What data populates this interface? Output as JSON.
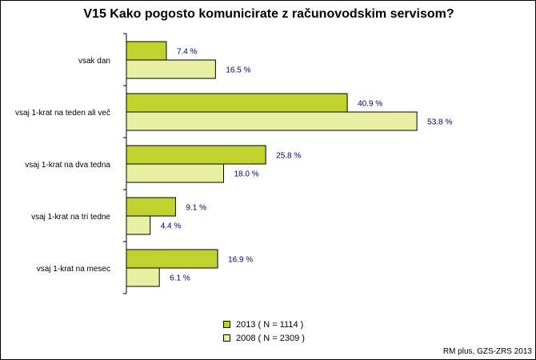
{
  "chart_data": {
    "type": "bar",
    "orientation": "horizontal",
    "title": "V15 Kako pogosto komunicirate z računovodskim servisom?",
    "categories": [
      "vsak dan",
      "vsaj 1-krat na teden ali več",
      "vsaj 1-krat na dva tedna",
      "vsaj 1-krat na tri tedne",
      "vsaj 1-krat na mesec"
    ],
    "series": [
      {
        "name": "2013 ( N = 1114 )",
        "color": "#bfd22e",
        "values": [
          7.4,
          40.9,
          25.8,
          9.1,
          16.9
        ]
      },
      {
        "name": "2008 ( N = 2309 )",
        "color": "#e6f0a0",
        "values": [
          16.5,
          53.8,
          18.0,
          4.4,
          6.1
        ]
      }
    ],
    "value_suffix": " %",
    "xlim": [
      0,
      56
    ],
    "grid": false,
    "legend_position": "bottom-center"
  },
  "source": "RM plus, GZS-ZRS 2013"
}
